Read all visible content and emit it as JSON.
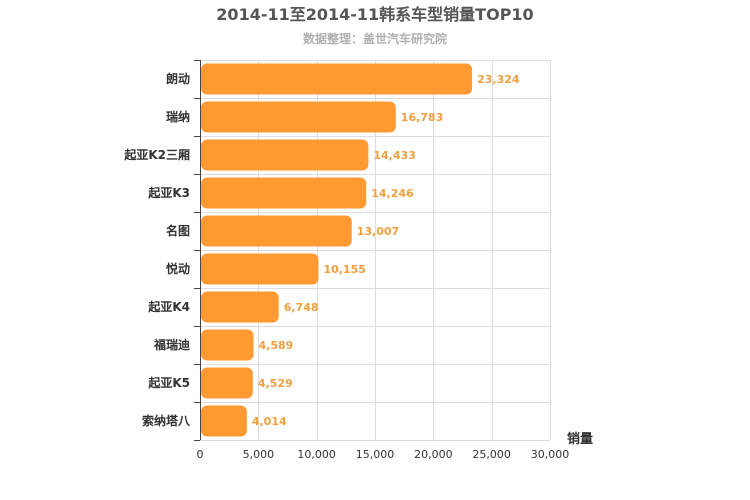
{
  "colors": {
    "bar": "#ff9a33",
    "value_label": "#f0a040"
  },
  "chart_data": {
    "type": "bar",
    "orientation": "horizontal",
    "title": "2014-11至2014-11韩系车型销量TOP10",
    "subtitle": "数据整理：盖世汽车研究院",
    "xlabel": "销量",
    "ylabel": "",
    "categories": [
      "朗动",
      "瑞纳",
      "起亚K2三厢",
      "起亚K3",
      "名图",
      "悦动",
      "起亚K4",
      "福瑞迪",
      "起亚K5",
      "索纳塔八"
    ],
    "values": [
      23324,
      16783,
      14433,
      14246,
      13007,
      10155,
      6748,
      4589,
      4529,
      4014
    ],
    "value_labels": [
      "23,324",
      "16,783",
      "14,433",
      "14,246",
      "13,007",
      "10,155",
      "6,748",
      "4,589",
      "4,529",
      "4,014"
    ],
    "xlim": [
      0,
      30000
    ],
    "xticks": [
      0,
      5000,
      10000,
      15000,
      20000,
      25000,
      30000
    ],
    "xtick_labels": [
      "0",
      "5,000",
      "10,000",
      "15,000",
      "20,000",
      "25,000",
      "30,000"
    ],
    "grid": true,
    "legend": "none"
  }
}
